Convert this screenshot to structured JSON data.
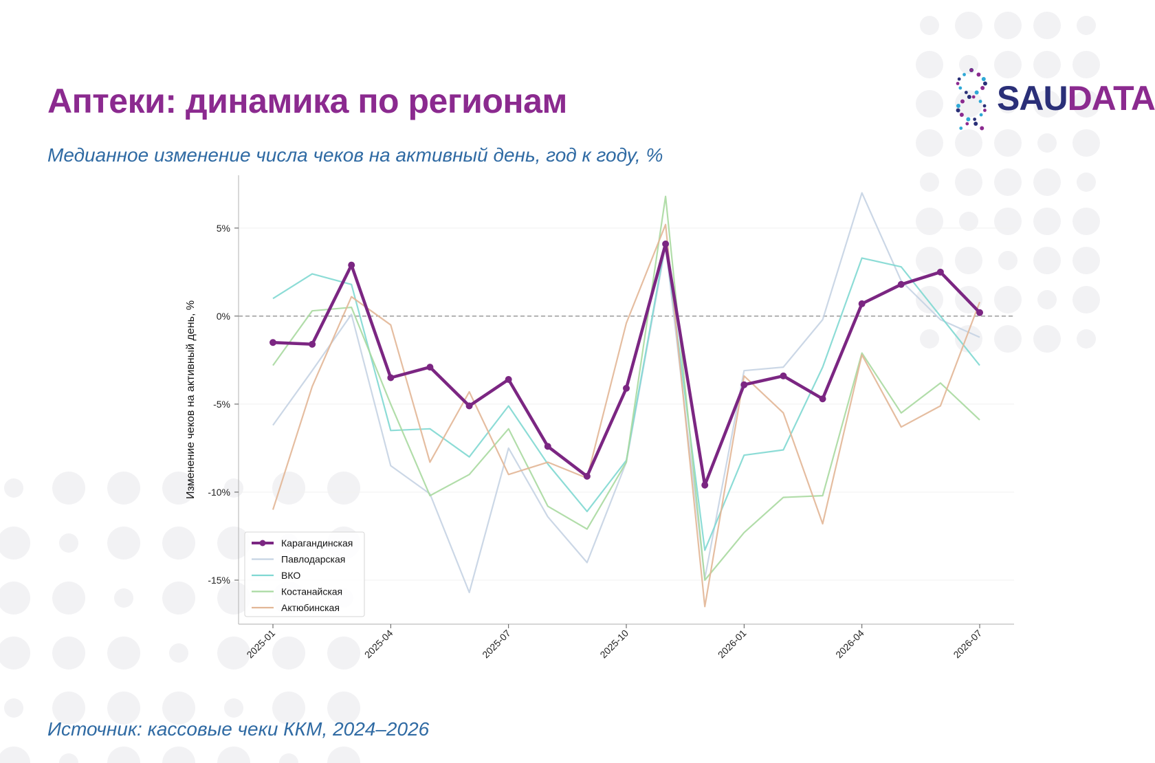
{
  "title": "Аптеки: динамика по регионам",
  "subtitle": "Медианное изменение числа чеков на активный день, год к году, %",
  "source": "Источник: кассовые чеки ККМ, 2024–2026",
  "logo": {
    "part1": "SAU",
    "part2": "DATA"
  },
  "colors": {
    "title": "#8b2a8f",
    "subtitle": "#2f6aa3",
    "logo_dark": "#2a2f78",
    "logo_accent": "#8b2a8f",
    "decor_dots": "#f2f2f4"
  },
  "chart_data": {
    "type": "line",
    "title": "",
    "xlabel": "",
    "ylabel": "Изменение чеков на активный день, %",
    "x": [
      "2025-01",
      "2025-02",
      "2025-03",
      "2025-04",
      "2025-05",
      "2025-06",
      "2025-07",
      "2025-08",
      "2025-09",
      "2025-10",
      "2025-11",
      "2025-12",
      "2026-01",
      "2026-02",
      "2026-03",
      "2026-04",
      "2026-05",
      "2026-06",
      "2026-07"
    ],
    "x_ticks": [
      "2025-01",
      "2025-04",
      "2025-07",
      "2025-10",
      "2026-01",
      "2026-04",
      "2026-07"
    ],
    "y_ticks": [
      5,
      0,
      -5,
      -10,
      -15
    ],
    "y_tick_labels": [
      "5%",
      "0%",
      "-5%",
      "-10%",
      "-15%"
    ],
    "ylim": [
      -17.5,
      8
    ],
    "zero_line": true,
    "grid": "horizontal-light",
    "legend_position": "lower-left",
    "series": [
      {
        "name": "Карагандинская",
        "color": "#7b2682",
        "highlight": true,
        "values": [
          -1.5,
          -1.6,
          2.9,
          -3.5,
          -2.9,
          -5.1,
          -3.6,
          -7.4,
          -9.1,
          -4.1,
          4.1,
          -9.6,
          -3.9,
          -3.4,
          -4.7,
          0.7,
          1.8,
          2.5,
          0.2
        ]
      },
      {
        "name": "Павлодарская",
        "color": "#c5d3e3",
        "highlight": false,
        "values": [
          -6.2,
          -3.1,
          0.1,
          -8.5,
          -10.1,
          -15.7,
          -7.5,
          -11.4,
          -14.0,
          -8.3,
          4.0,
          -14.9,
          -3.1,
          -2.9,
          -0.2,
          7.0,
          2.0,
          -0.2,
          -1.2
        ]
      },
      {
        "name": "ВКО",
        "color": "#7fd8d2",
        "highlight": false,
        "values": [
          1.0,
          2.4,
          1.8,
          -6.5,
          -6.4,
          -8.0,
          -5.1,
          -8.4,
          -11.1,
          -8.2,
          4.2,
          -13.3,
          -7.9,
          -7.6,
          -2.9,
          3.3,
          2.8,
          0.0,
          -2.8
        ]
      },
      {
        "name": "Костанайская",
        "color": "#a8d9a0",
        "highlight": false,
        "values": [
          -2.8,
          0.3,
          0.5,
          -5.0,
          -10.2,
          -9.0,
          -6.4,
          -10.8,
          -12.1,
          -8.3,
          6.8,
          -15.0,
          -12.3,
          -10.3,
          -10.2,
          -2.1,
          -5.5,
          -3.8,
          -5.9
        ]
      },
      {
        "name": "Актюбинская",
        "color": "#e2b696",
        "highlight": false,
        "values": [
          -11.0,
          -4.0,
          1.1,
          -0.5,
          -8.3,
          -4.3,
          -9.0,
          -8.3,
          -9.2,
          -0.4,
          5.2,
          -16.5,
          -3.4,
          -5.5,
          -11.8,
          -2.2,
          -6.3,
          -5.1,
          0.8
        ]
      }
    ]
  }
}
